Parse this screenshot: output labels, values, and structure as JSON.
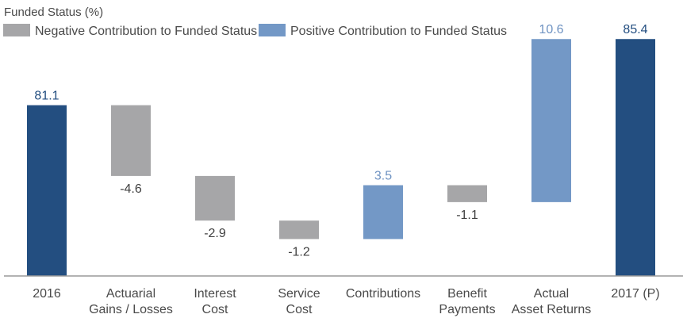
{
  "chart_data": {
    "type": "bar",
    "subtype": "waterfall",
    "title": "Funded Status (%)",
    "legend": {
      "placement": "top",
      "entries": [
        {
          "label": "Negative Contribution to Funded Status",
          "color": "#a6a6a8"
        },
        {
          "label": "Positive Contribution to Funded Status",
          "color": "#7398c6"
        }
      ]
    },
    "categories": [
      [
        "2016"
      ],
      [
        "Actuarial",
        "Gains / Losses"
      ],
      [
        "Interest",
        "Cost"
      ],
      [
        "Service",
        "Cost"
      ],
      [
        "Contributions"
      ],
      [
        "Benefit",
        "Payments"
      ],
      [
        "Actual",
        "Asset Returns"
      ],
      [
        "2017 (P)"
      ]
    ],
    "values": [
      81.1,
      -4.6,
      -2.9,
      -1.2,
      3.5,
      -1.1,
      10.6,
      85.4
    ],
    "value_labels": [
      "81.1",
      "-4.6",
      "-2.9",
      "-1.2",
      "3.5",
      "-1.1",
      "10.6",
      "85.4"
    ],
    "kinds": [
      "total",
      "negative",
      "negative",
      "negative",
      "positive",
      "negative",
      "positive",
      "total"
    ],
    "colors": {
      "total": "#234e80",
      "negative": "#a6a6a8",
      "positive": "#7398c6",
      "total_label": "#234e80",
      "negative_label": "#404040",
      "positive_label": "#6f93c2"
    },
    "baseline": 70.0,
    "ylim": [
      70.0,
      86.0
    ],
    "xlabel": "",
    "ylabel": "",
    "grid": false
  }
}
